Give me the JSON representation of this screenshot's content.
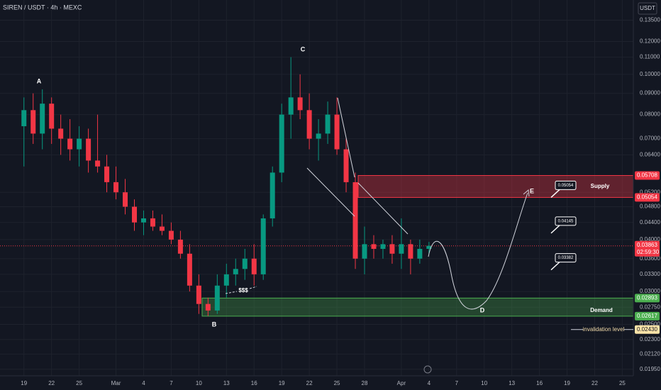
{
  "chart_data": {
    "type": "candlestick",
    "title": "SIREN / USDT · 4h · MEXC",
    "axis_unit": "USDT",
    "log_scale": true,
    "ylim": [
      0.0188,
      0.151
    ],
    "yticks": [
      {
        "value": 0.135,
        "label": "0.13500"
      },
      {
        "value": 0.12,
        "label": "0.12000"
      },
      {
        "value": 0.11,
        "label": "0.11000"
      },
      {
        "value": 0.1,
        "label": "0.10000"
      },
      {
        "value": 0.09,
        "label": "0.09000"
      },
      {
        "value": 0.08,
        "label": "0.08000"
      },
      {
        "value": 0.07,
        "label": "0.07000"
      },
      {
        "value": 0.064,
        "label": "0.06400"
      },
      {
        "value": 0.052,
        "label": "0.05200"
      },
      {
        "value": 0.048,
        "label": "0.04800"
      },
      {
        "value": 0.044,
        "label": "0.04400"
      },
      {
        "value": 0.04,
        "label": "0.04000"
      },
      {
        "value": 0.036,
        "label": "0.03600"
      },
      {
        "value": 0.033,
        "label": "0.03300"
      },
      {
        "value": 0.03,
        "label": "0.03000"
      },
      {
        "value": 0.0275,
        "label": "0.02750"
      },
      {
        "value": 0.025,
        "label": "0.02500"
      },
      {
        "value": 0.023,
        "label": "0.02300"
      },
      {
        "value": 0.0212,
        "label": "0.02120"
      },
      {
        "value": 0.0195,
        "label": "0.01950"
      }
    ],
    "xlim": [
      -2.6,
      66.2
    ],
    "xticks": [
      {
        "value": 0,
        "label": "19"
      },
      {
        "value": 3,
        "label": "22"
      },
      {
        "value": 6,
        "label": "25"
      },
      {
        "value": 10,
        "label": "Mar"
      },
      {
        "value": 13,
        "label": "4"
      },
      {
        "value": 16,
        "label": "7"
      },
      {
        "value": 19,
        "label": "10"
      },
      {
        "value": 22,
        "label": "13"
      },
      {
        "value": 25,
        "label": "16"
      },
      {
        "value": 28,
        "label": "19"
      },
      {
        "value": 31,
        "label": "22"
      },
      {
        "value": 34,
        "label": "25"
      },
      {
        "value": 37,
        "label": "28"
      },
      {
        "value": 41,
        "label": "Apr"
      },
      {
        "value": 44,
        "label": "4"
      },
      {
        "value": 47,
        "label": "7"
      },
      {
        "value": 50,
        "label": "10"
      },
      {
        "value": 53,
        "label": "13"
      },
      {
        "value": 56,
        "label": "16"
      },
      {
        "value": 59,
        "label": "19"
      },
      {
        "value": 62,
        "label": "22"
      },
      {
        "value": 65,
        "label": "25"
      }
    ],
    "up_color": "#089981",
    "down_color": "#f23645",
    "open": [
      0.075,
      0.082,
      0.072,
      0.085,
      0.074,
      0.07,
      0.066,
      0.07,
      0.062,
      0.06,
      0.055,
      0.052,
      0.048,
      0.044,
      0.045,
      0.043,
      0.042,
      0.04,
      0.037,
      0.031,
      0.028,
      0.027,
      0.031,
      0.033,
      0.034,
      0.036,
      0.033,
      0.045,
      0.058,
      0.08,
      0.088,
      0.082,
      0.07,
      0.072,
      0.08,
      0.066,
      0.055,
      0.036,
      0.039,
      0.038,
      0.039,
      0.037,
      0.039,
      0.036,
      0.038
    ],
    "high": [
      0.088,
      0.09,
      0.092,
      0.088,
      0.08,
      0.078,
      0.075,
      0.074,
      0.08,
      0.064,
      0.06,
      0.056,
      0.05,
      0.047,
      0.047,
      0.046,
      0.044,
      0.042,
      0.039,
      0.033,
      0.029,
      0.033,
      0.035,
      0.036,
      0.038,
      0.039,
      0.046,
      0.06,
      0.085,
      0.11,
      0.1,
      0.09,
      0.078,
      0.086,
      0.088,
      0.07,
      0.058,
      0.043,
      0.041,
      0.04,
      0.041,
      0.045,
      0.04,
      0.04,
      0.0395
    ],
    "low": [
      0.06,
      0.068,
      0.066,
      0.068,
      0.064,
      0.062,
      0.06,
      0.058,
      0.058,
      0.052,
      0.05,
      0.046,
      0.042,
      0.041,
      0.042,
      0.041,
      0.039,
      0.036,
      0.03,
      0.0265,
      0.0262,
      0.0265,
      0.029,
      0.031,
      0.032,
      0.031,
      0.032,
      0.043,
      0.055,
      0.07,
      0.078,
      0.066,
      0.062,
      0.068,
      0.064,
      0.052,
      0.034,
      0.033,
      0.036,
      0.036,
      0.035,
      0.034,
      0.033,
      0.035,
      0.037
    ],
    "close": [
      0.082,
      0.072,
      0.085,
      0.074,
      0.07,
      0.066,
      0.07,
      0.062,
      0.06,
      0.055,
      0.052,
      0.048,
      0.044,
      0.045,
      0.043,
      0.042,
      0.04,
      0.037,
      0.031,
      0.028,
      0.027,
      0.031,
      0.033,
      0.034,
      0.036,
      0.033,
      0.045,
      0.058,
      0.08,
      0.088,
      0.082,
      0.07,
      0.072,
      0.08,
      0.066,
      0.055,
      0.036,
      0.039,
      0.038,
      0.039,
      0.037,
      0.039,
      0.036,
      0.038,
      0.03863
    ],
    "last_price": {
      "value": 0.03863,
      "countdown": "02:59:30"
    },
    "supply": {
      "label": "Supply",
      "top": 0.05708,
      "bottom": 0.05054
    },
    "demand": {
      "label": "Demand",
      "top": 0.02893,
      "bottom": 0.02617
    },
    "invalidation": {
      "label": "invalidation level",
      "value": 0.0243,
      "price_label": "0.02430"
    },
    "targets": [
      0.05054,
      0.04145,
      0.03382
    ],
    "wave_labels": [
      "A",
      "B",
      "C",
      "D",
      "E"
    ],
    "liquidity_label": "$$$"
  }
}
